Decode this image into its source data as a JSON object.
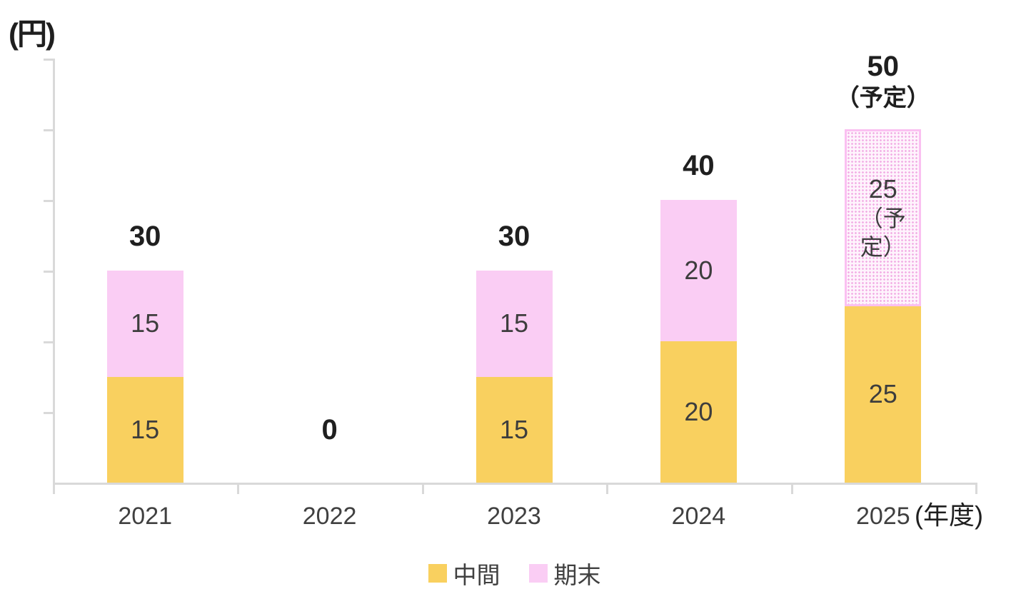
{
  "chart_data": {
    "type": "bar",
    "stacked": true,
    "unit_label": "(円)",
    "x_axis_suffix": "(年度)",
    "categories": [
      "2021",
      "2022",
      "2023",
      "2024",
      "2025"
    ],
    "series": [
      {
        "name": "中間",
        "color": "#F9D05F",
        "values": [
          15,
          0,
          15,
          20,
          25
        ],
        "labels": [
          [
            "15"
          ],
          [],
          [
            "15"
          ],
          [
            "20"
          ],
          [
            "25"
          ]
        ],
        "patterned": [
          false,
          false,
          false,
          false,
          false
        ]
      },
      {
        "name": "期末",
        "color": "#FACDF4",
        "values": [
          15,
          0,
          15,
          20,
          25
        ],
        "labels": [
          [
            "15"
          ],
          [],
          [
            "15"
          ],
          [
            "20"
          ],
          [
            "25",
            "（予定）"
          ]
        ],
        "patterned": [
          false,
          false,
          false,
          false,
          true
        ]
      }
    ],
    "totals": [
      [
        "30"
      ],
      [
        "0"
      ],
      [
        "30"
      ],
      [
        "40"
      ],
      [
        "50",
        "（予定）"
      ]
    ],
    "ylim": [
      0,
      60
    ],
    "y_tick_step": 10,
    "grid": false,
    "legend_position": "bottom",
    "colors": {
      "axis": "#D9D9D9",
      "pattern_bg": "#FEF3FC",
      "pattern_dot": "#F2AEE5",
      "pattern_border": "#FAC0F1",
      "total_text": "#1f1f1f",
      "label_text": "#3d3d3d",
      "category_text": "#404040"
    }
  }
}
